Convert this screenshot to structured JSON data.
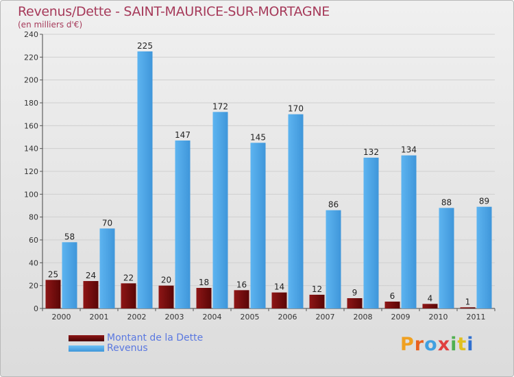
{
  "title": "Revenus/Dette - SAINT-MAURICE-SUR-MORTAGNE",
  "subtitle": "(en milliers d'€)",
  "colors": {
    "title": "#a63a5a",
    "dette": "#7a1010",
    "revenus": "#4ca6e8",
    "legend_text": "#5a78e0"
  },
  "legend": [
    {
      "label": "Montant de la Dette",
      "color": "#6b0a0a"
    },
    {
      "label": "Revenus",
      "color": "#4ca6e8"
    }
  ],
  "logo": {
    "text": "Proxiti"
  },
  "chart_data": {
    "type": "bar",
    "title": "Revenus/Dette - SAINT-MAURICE-SUR-MORTAGNE",
    "ylabel": "(en milliers d'€)",
    "xlabel": "",
    "categories": [
      "2000",
      "2001",
      "2002",
      "2003",
      "2004",
      "2005",
      "2006",
      "2007",
      "2008",
      "2009",
      "2010",
      "2011"
    ],
    "series": [
      {
        "name": "Montant de la Dette",
        "values": [
          25,
          24,
          22,
          20,
          18,
          16,
          14,
          12,
          9,
          6,
          4,
          1
        ]
      },
      {
        "name": "Revenus",
        "values": [
          58,
          70,
          225,
          147,
          172,
          145,
          170,
          86,
          132,
          134,
          88,
          89
        ]
      }
    ],
    "ylim": [
      0,
      240
    ],
    "yticks": [
      0,
      20,
      40,
      60,
      80,
      100,
      120,
      140,
      160,
      180,
      200,
      220,
      240
    ],
    "grid": true,
    "legend_position": "bottom-left"
  }
}
